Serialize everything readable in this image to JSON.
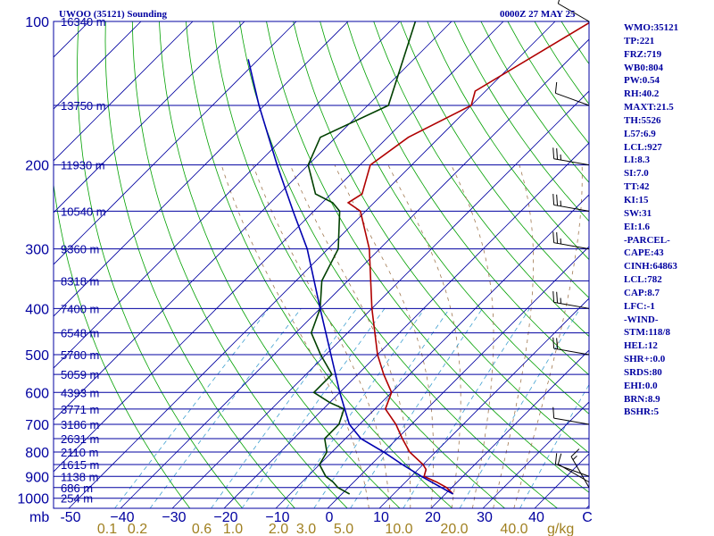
{
  "header": {
    "station": "UWOO (35121) Sounding",
    "time": "0000Z 27 MAY 25"
  },
  "indices": [
    "WMO:35121",
    "TP:221",
    "FRZ:719",
    "WB0:804",
    "PW:0.54",
    "RH:40.2",
    "MAXT:21.5",
    "TH:5526",
    "L57:6.9",
    "LCL:927",
    "LI:8.3",
    "SI:7.0",
    "TT:42",
    "KI:15",
    "SW:31",
    "EI:1.6",
    "-PARCEL-",
    "CAPE:43",
    "CINH:64863",
    "LCL:782",
    "CAP:8.7",
    "LFC:-1",
    "-WIND-",
    "STM:118/8",
    "HEL:12",
    "SHR+:0.0",
    "SRDS:80",
    "EHI:0.0",
    "BRN:8.9",
    "BSHR:5"
  ],
  "chart_data": {
    "type": "line",
    "title": "UWOO (35121) Sounding",
    "subtitle": "0000Z 27 MAY 25",
    "xlabel": "C",
    "ylabel": "mb",
    "xlim": [
      -50,
      50
    ],
    "ylim": [
      1000,
      100
    ],
    "skewed_isotherms": true,
    "pressure_ticks": [
      100,
      200,
      300,
      400,
      500,
      600,
      700,
      800,
      900,
      1000
    ],
    "pressure_tick_labels": [
      "100",
      "200",
      "300",
      "400",
      "500",
      "600",
      "700",
      "800",
      "900",
      "1000"
    ],
    "temperature_ticks": [
      -50,
      -40,
      -30,
      -20,
      -10,
      0,
      10,
      20,
      30,
      40
    ],
    "temperature_tick_labels": [
      "-50",
      "−40",
      "−30",
      "−20",
      "−10",
      "0",
      "10",
      "20",
      "30",
      "40"
    ],
    "mixing_ratio_labels": [
      "0.1",
      "0.2",
      "0.6",
      "1.0",
      "2.0",
      "3.0",
      "5.0",
      "10.0",
      "20.0",
      "40.0"
    ],
    "mixing_ratio_unit": "g/kg",
    "height_labels": [
      {
        "p": 100,
        "label": "16340 m"
      },
      {
        "p": 150,
        "label": "13750 m"
      },
      {
        "p": 200,
        "label": "11930 m"
      },
      {
        "p": 250,
        "label": "10540 m"
      },
      {
        "p": 300,
        "label": "9360 m"
      },
      {
        "p": 350,
        "label": "8318 m"
      },
      {
        "p": 400,
        "label": "7400 m"
      },
      {
        "p": 450,
        "label": "6548 m"
      },
      {
        "p": 500,
        "label": "5780 m"
      },
      {
        "p": 550,
        "label": "5059 m"
      },
      {
        "p": 600,
        "label": "4393 m"
      },
      {
        "p": 650,
        "label": "3771 m"
      },
      {
        "p": 700,
        "label": "3186 m"
      },
      {
        "p": 750,
        "label": "2631 m"
      },
      {
        "p": 800,
        "label": "2110 m"
      },
      {
        "p": 850,
        "label": "1615 m"
      },
      {
        "p": 900,
        "label": "1138 m"
      },
      {
        "p": 950,
        "label": "686 m"
      },
      {
        "p": 1000,
        "label": "254 m"
      }
    ],
    "series": [
      {
        "role": "temperature",
        "color": "#b00000",
        "p": [
          980,
          950,
          925,
          900,
          870,
          850,
          800,
          750,
          700,
          650,
          600,
          550,
          500,
          400,
          300,
          250,
          240,
          230,
          200,
          175,
          150,
          140,
          100
        ],
        "t": [
          21.5,
          19.0,
          16.0,
          12.5,
          11.5,
          10.0,
          5.0,
          1.0,
          -3.0,
          -8.0,
          -10.0,
          -15.0,
          -20.0,
          -30.0,
          -42.0,
          -51.0,
          -55.0,
          -54.0,
          -58.0,
          -56.0,
          -50.0,
          -52.0,
          -43.0
        ]
      },
      {
        "role": "dewpoint",
        "color": "#004000",
        "p": [
          980,
          950,
          925,
          900,
          850,
          800,
          750,
          700,
          650,
          630,
          600,
          550,
          500,
          450,
          400,
          350,
          300,
          250,
          240,
          230,
          200,
          175,
          150,
          100
        ],
        "t": [
          1.5,
          -2.0,
          -4.0,
          -6.5,
          -10.0,
          -11.0,
          -14.0,
          -14.0,
          -16.0,
          -20.0,
          -25.0,
          -25.0,
          -31.0,
          -37.0,
          -40.0,
          -45.0,
          -48.0,
          -55.0,
          -58.0,
          -63.0,
          -70.0,
          -73.0,
          -66.0,
          -77.0
        ]
      },
      {
        "role": "parcel",
        "color": "#0000b0",
        "p": [
          980,
          950,
          900,
          850,
          800,
          750,
          700,
          600,
          500,
          400,
          300,
          250,
          200,
          150,
          120
        ],
        "t": [
          21.5,
          18.0,
          12.0,
          6.0,
          0.0,
          -7.0,
          -12.0,
          -20.0,
          -29.0,
          -40.0,
          -54.0,
          -64.0,
          -76.0,
          -91.0,
          -102.0
        ]
      }
    ],
    "wind_barbs": [
      {
        "p": 950,
        "dir": 330,
        "spd": 15
      },
      {
        "p": 925,
        "dir": 300,
        "spd": 10
      },
      {
        "p": 900,
        "dir": 290,
        "spd": 10
      },
      {
        "p": 700,
        "dir": 280,
        "spd": 10
      },
      {
        "p": 500,
        "dir": 280,
        "spd": 20
      },
      {
        "p": 400,
        "dir": 280,
        "spd": 25
      },
      {
        "p": 300,
        "dir": 280,
        "spd": 25
      },
      {
        "p": 250,
        "dir": 280,
        "spd": 25
      },
      {
        "p": 200,
        "dir": 280,
        "spd": 25
      },
      {
        "p": 150,
        "dir": 290,
        "spd": 10
      },
      {
        "p": 100,
        "dir": 300,
        "spd": 10
      }
    ]
  }
}
